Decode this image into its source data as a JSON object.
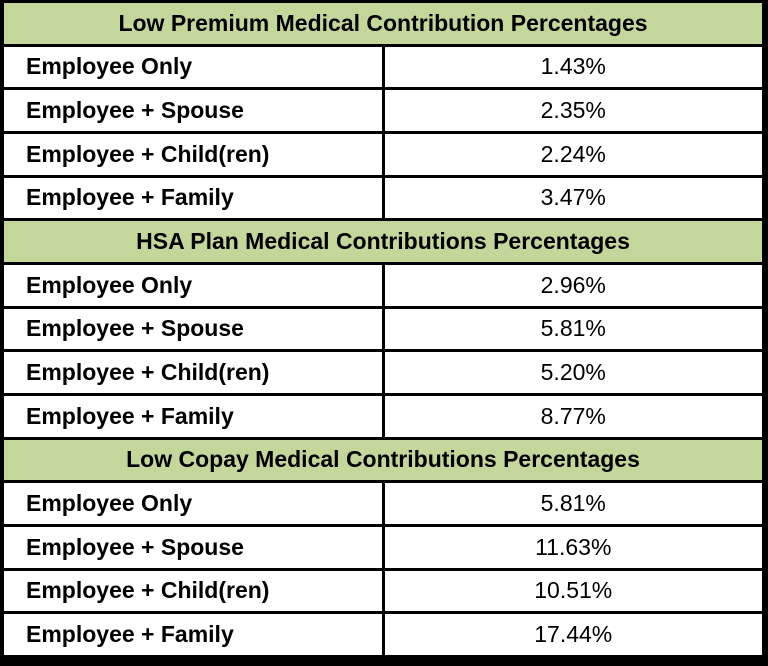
{
  "colors": {
    "header_bg": "#c4d79b",
    "border": "#000000",
    "cell_bg": "#ffffff",
    "text": "#000000"
  },
  "table": {
    "sections": [
      {
        "header": "Low Premium Medical Contribution Percentages",
        "rows": [
          {
            "label": "Employee Only",
            "value": "1.43%"
          },
          {
            "label": "Employee + Spouse",
            "value": "2.35%"
          },
          {
            "label": "Employee + Child(ren)",
            "value": "2.24%"
          },
          {
            "label": "Employee + Family",
            "value": "3.47%"
          }
        ]
      },
      {
        "header": "HSA Plan Medical Contributions Percentages",
        "rows": [
          {
            "label": "Employee Only",
            "value": "2.96%"
          },
          {
            "label": "Employee + Spouse",
            "value": "5.81%"
          },
          {
            "label": "Employee + Child(ren)",
            "value": "5.20%"
          },
          {
            "label": "Employee + Family",
            "value": "8.77%"
          }
        ]
      },
      {
        "header": "Low Copay Medical Contributions Percentages",
        "rows": [
          {
            "label": "Employee Only",
            "value": "5.81%"
          },
          {
            "label": "Employee + Spouse",
            "value": "11.63%"
          },
          {
            "label": "Employee + Child(ren)",
            "value": "10.51%"
          },
          {
            "label": "Employee + Family",
            "value": "17.44%"
          }
        ]
      }
    ]
  }
}
